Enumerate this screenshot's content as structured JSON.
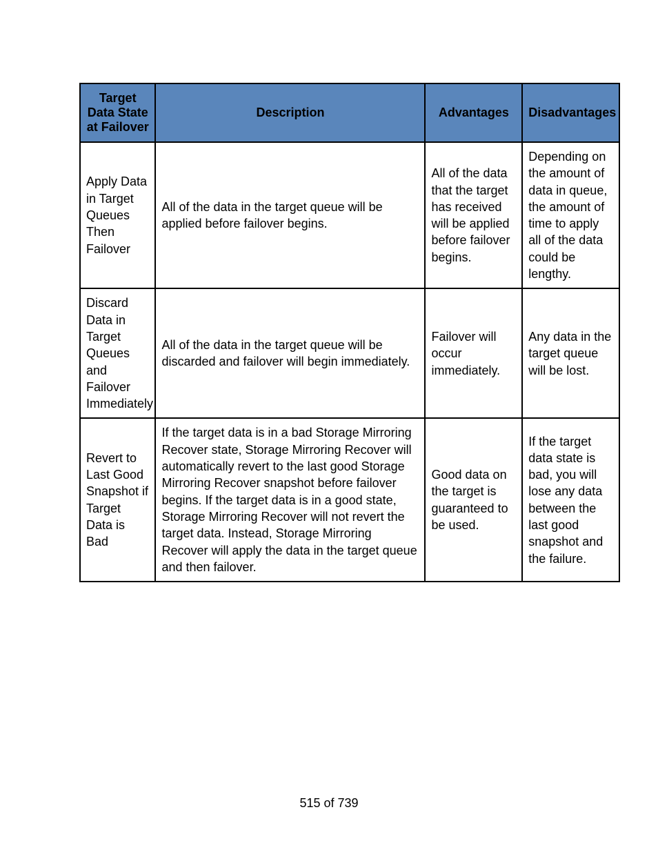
{
  "table": {
    "header_bg_color": "#5a86bb",
    "border_color": "#000000",
    "headers": {
      "state": "Target Data State at Failover",
      "description": "Description",
      "advantages": "Advantages",
      "disadvantages": "Disadvantages"
    },
    "rows": [
      {
        "state": "Apply Data in Target Queues Then Failover",
        "description": "All of the data in the target queue will be applied before failover begins.",
        "advantages": "All of the data that the target has received will be applied before failover begins.",
        "disadvantages": "Depending on the amount of data in queue, the amount of time to apply all of the data could be lengthy."
      },
      {
        "state": "Discard Data in Target Queues and Failover Immediately",
        "description": "All of the data in the target queue will be discarded and failover will begin immediately.",
        "advantages": "Failover will occur immediately.",
        "disadvantages": "Any data in the target queue will be lost."
      },
      {
        "state": "Revert to Last Good Snapshot if Target Data is Bad",
        "description": "If the target data is in a bad Storage Mirroring Recover state, Storage Mirroring Recover will automatically revert to the last good Storage Mirroring Recover snapshot before failover begins. If the target data is in a good state, Storage Mirroring Recover will not revert the target data. Instead, Storage Mirroring Recover will apply the data in the target queue and then failover.",
        "advantages": "Good data on the target is guaranteed to be used.",
        "disadvantages": "If the target data state is bad, you will lose any data between the last good snapshot and the failure."
      }
    ]
  },
  "pagination": {
    "text": "515 of 739"
  }
}
